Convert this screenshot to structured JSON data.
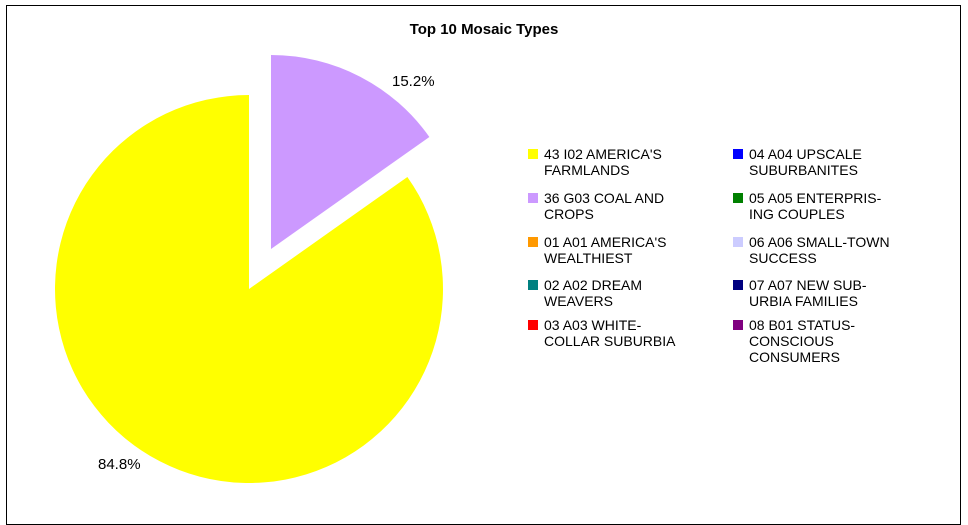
{
  "chart_data": {
    "type": "pie",
    "title": "Top 10 Mosaic Types",
    "slices": [
      {
        "label": "43 I02 AMERICA'S FARMLANDS",
        "value": 84.8,
        "value_label": "84.8%",
        "color": "#FFFF00",
        "exploded": false
      },
      {
        "label": "36 G03 COAL AND CROPS",
        "value": 15.2,
        "value_label": "15.2%",
        "color": "#CC99FF",
        "exploded": true
      },
      {
        "label": "01 A01 AMERICA'S WEALTHIEST",
        "value": 0,
        "color": "#FF9900"
      },
      {
        "label": "02 A02 DREAM WEAVERS",
        "value": 0,
        "color": "#008080"
      },
      {
        "label": "03 A03 WHITE-COLLAR SUBURBIA",
        "value": 0,
        "color": "#FF0000"
      },
      {
        "label": "04 A04 UPSCALE SUBURBANITES",
        "value": 0,
        "color": "#0000FF"
      },
      {
        "label": "05 A05 ENTERPRISING COUPLES",
        "value": 0,
        "color": "#008000"
      },
      {
        "label": "06 A06 SMALL-TOWN SUCCESS",
        "value": 0,
        "color": "#CCCCFF"
      },
      {
        "label": "07 A07 NEW SUBURBIA FAMILIES",
        "value": 0,
        "color": "#000080"
      },
      {
        "label": "08 B01 STATUS-CONSCIOUS CONSUMERS",
        "value": 0,
        "color": "#800080"
      }
    ],
    "legend": {
      "placement": "right",
      "columns": [
        [
          {
            "lines": [
              "43 I02 AMERICA'S",
              "FARMLANDS"
            ],
            "color": "#FFFF00"
          },
          {
            "lines": [
              "36 G03 COAL AND",
              "CROPS"
            ],
            "color": "#CC99FF"
          },
          {
            "lines": [
              "01 A01 AMERICA'S",
              "WEALTHIEST"
            ],
            "color": "#FF9900"
          },
          {
            "lines": [
              "02 A02 DREAM",
              "WEAVERS"
            ],
            "color": "#008080"
          },
          {
            "lines": [
              "03 A03 WHITE-",
              "COLLAR SUBURBIA"
            ],
            "color": "#FF0000"
          }
        ],
        [
          {
            "lines": [
              "04 A04 UPSCALE",
              "SUBURBANITES"
            ],
            "color": "#0000FF"
          },
          {
            "lines": [
              "05 A05 ENTERPRIS-",
              "ING COUPLES"
            ],
            "color": "#008000"
          },
          {
            "lines": [
              "06 A06 SMALL-TOWN",
              "SUCCESS"
            ],
            "color": "#CCCCFF"
          },
          {
            "lines": [
              "07 A07 NEW SUB-",
              "URBIA FAMILIES"
            ],
            "color": "#000080"
          },
          {
            "lines": [
              "08 B01 STATUS-",
              "CONSCIOUS",
              "CONSUMERS"
            ],
            "color": "#800080"
          }
        ]
      ]
    }
  }
}
